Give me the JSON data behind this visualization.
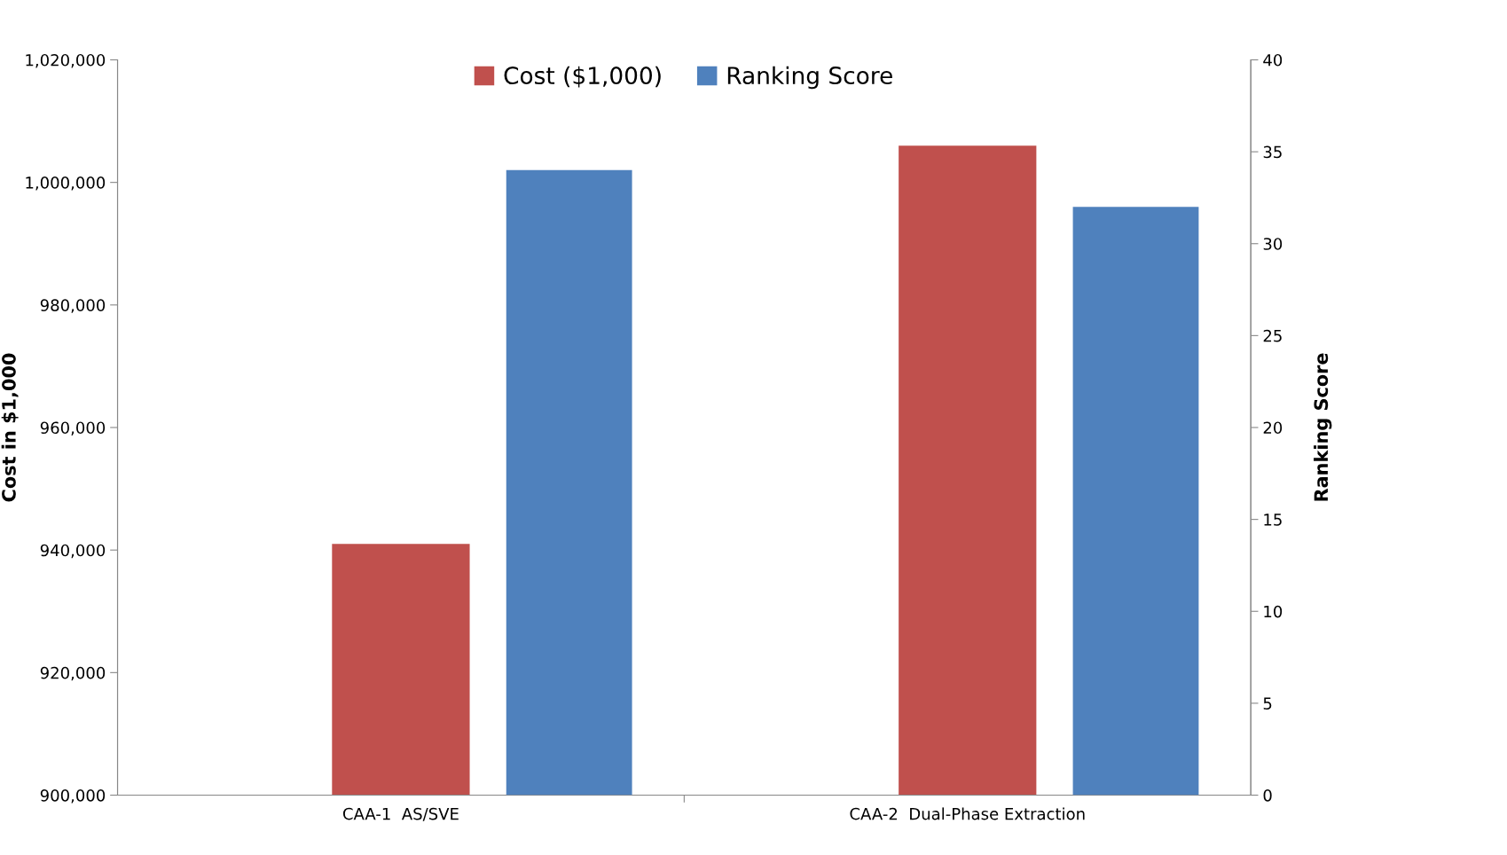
{
  "chart_data": {
    "type": "bar",
    "categories": [
      "CAA-1  AS/SVE",
      "CAA-2  Dual-Phase Extraction"
    ],
    "ylabel": "Cost in $1,000",
    "y2label": "Ranking Score",
    "series": [
      {
        "name": "Cost ($1,000)",
        "color": "#c0504d",
        "values": [
          941000,
          1006000
        ]
      },
      {
        "name": "Ranking Score",
        "color": "#4f81bd",
        "values": [
          34,
          32
        ],
        "axis": "y2"
      }
    ],
    "ylim": [
      900000,
      1020000
    ],
    "yticks": [
      {
        "value": 900000,
        "label": "900,000"
      },
      {
        "value": 920000,
        "label": "920,000"
      },
      {
        "value": 940000,
        "label": "940,000"
      },
      {
        "value": 960000,
        "label": "960,000"
      },
      {
        "value": 980000,
        "label": "980,000"
      },
      {
        "value": 1000000,
        "label": "1,000,000"
      },
      {
        "value": 1020000,
        "label": "1,020,000"
      }
    ],
    "y2lim": [
      0,
      40
    ],
    "y2ticks": [
      0,
      5,
      10,
      15,
      20,
      25,
      30,
      35,
      40
    ],
    "grid": false,
    "legend": "top"
  }
}
